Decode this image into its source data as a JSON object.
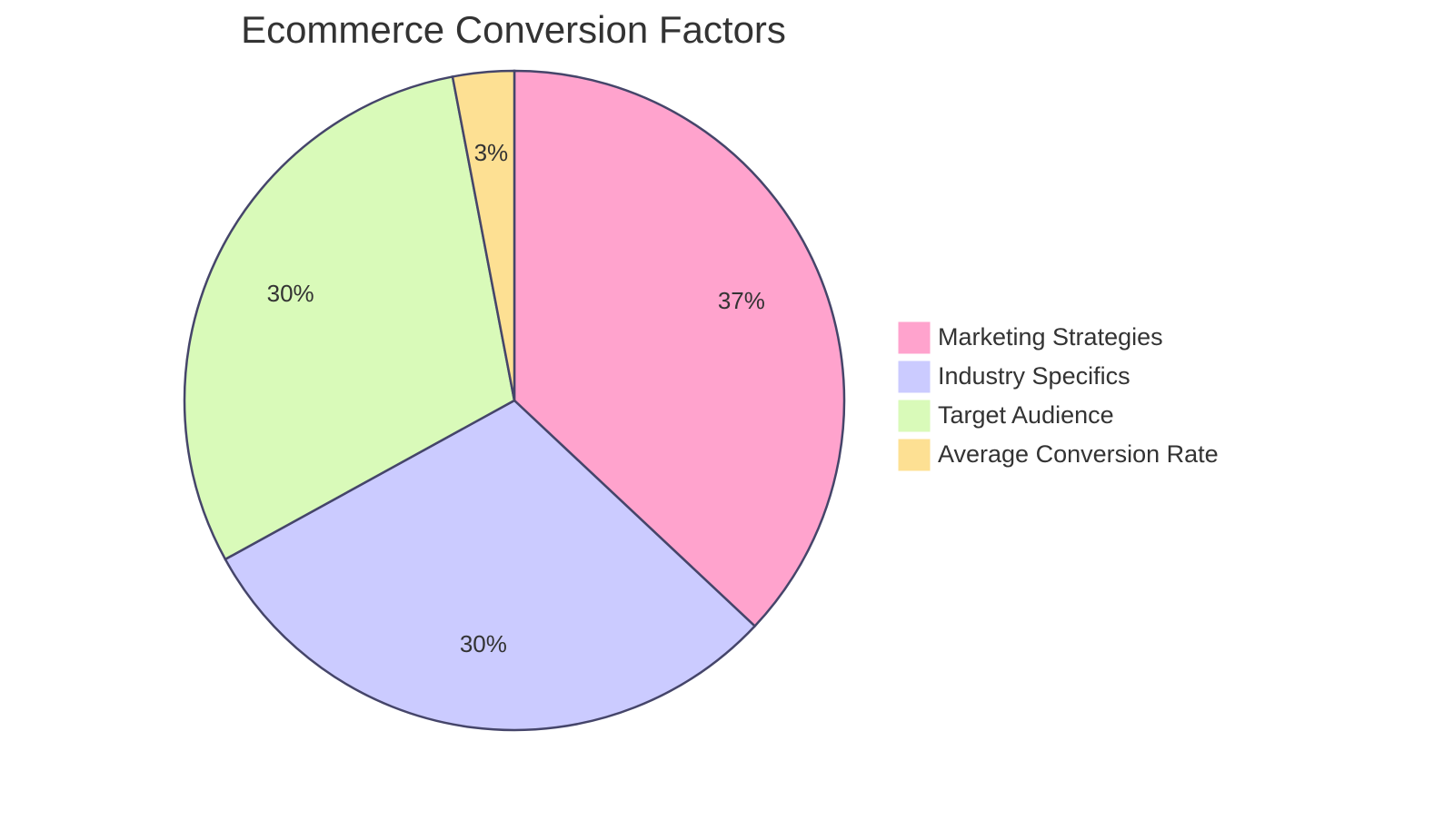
{
  "chart_data": {
    "type": "pie",
    "title": "Ecommerce Conversion Factors",
    "categories": [
      "Marketing Strategies",
      "Industry Specifics",
      "Target Audience",
      "Average Conversion Rate"
    ],
    "values": [
      37,
      30,
      30,
      3
    ],
    "value_labels": [
      "37%",
      "30%",
      "30%",
      "3%"
    ],
    "colors": [
      "#ffa3cd",
      "#cbcbff",
      "#d9fab9",
      "#fde093"
    ]
  }
}
